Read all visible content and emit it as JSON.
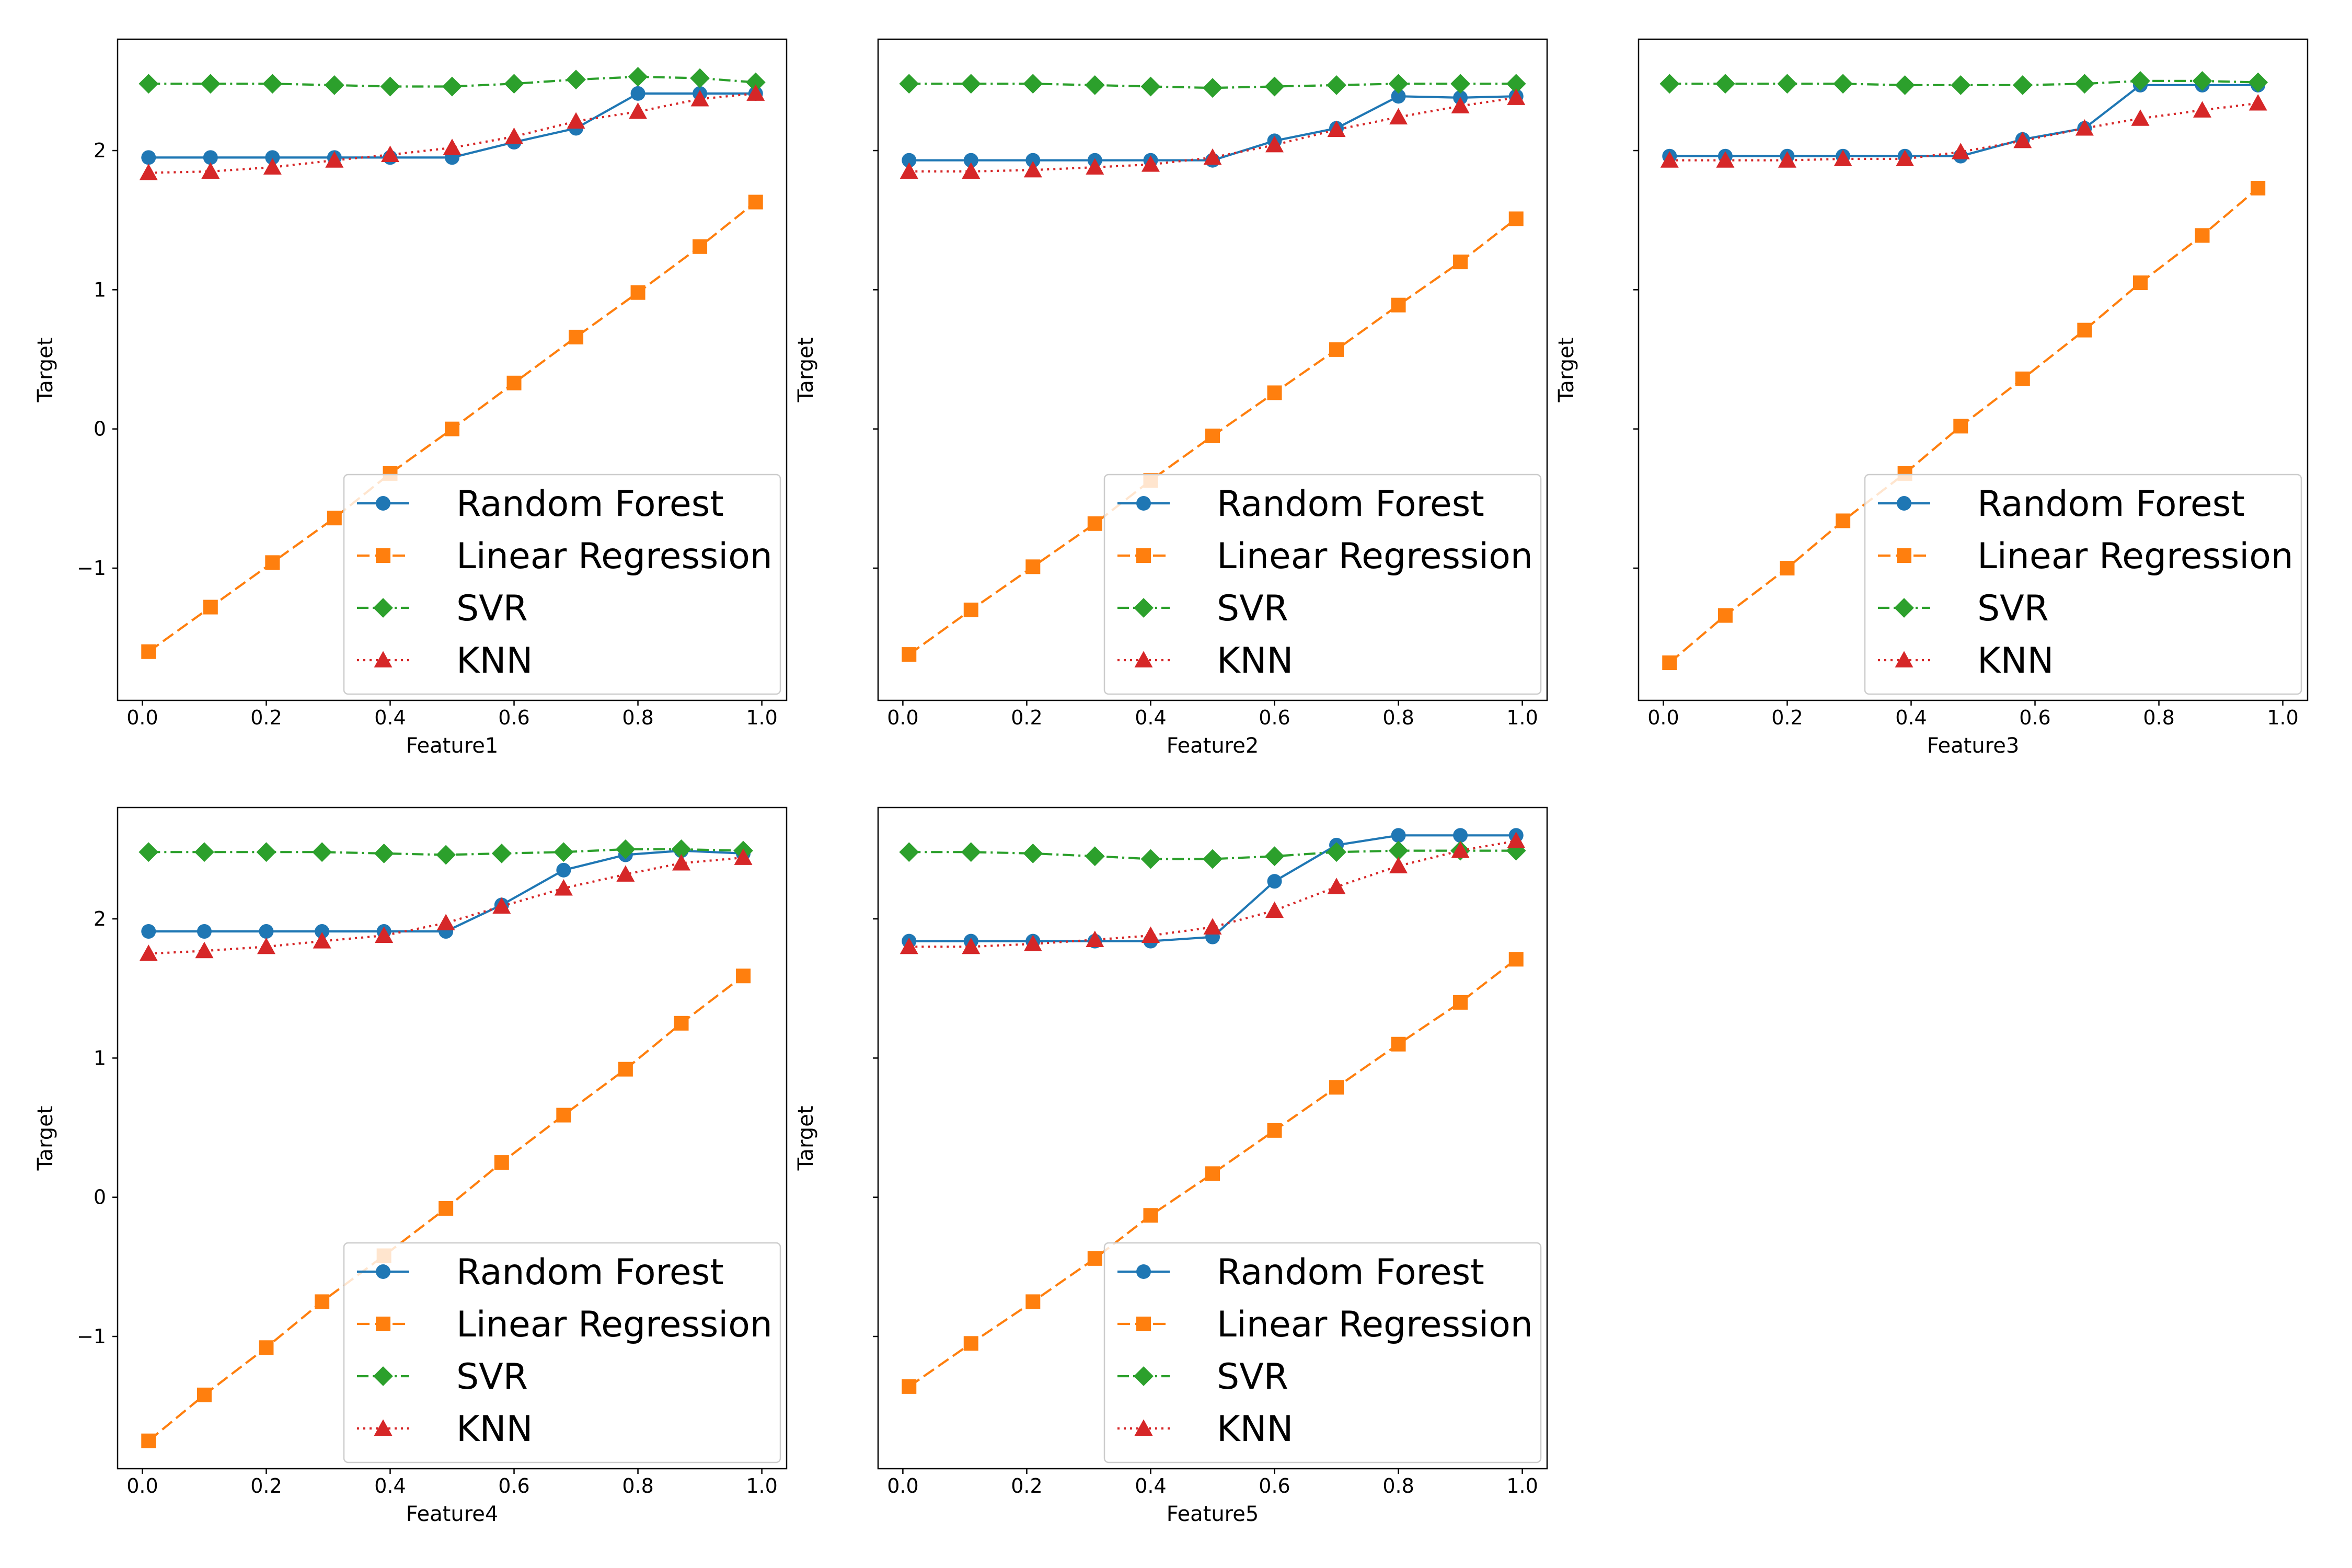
{
  "colors": {
    "Random Forest": "#1f77b4",
    "Linear Regression": "#ff7f0e",
    "SVR": "#2ca02c",
    "KNN": "#d62728"
  },
  "chart_data": [
    {
      "type": "line",
      "xlabel": "Feature1",
      "ylabel": "Target",
      "xlim": [
        -0.04,
        1.04
      ],
      "ylim": [
        -1.95,
        2.8
      ],
      "xticks": [
        "0.0",
        "0.2",
        "0.4",
        "0.6",
        "0.8",
        "1.0"
      ],
      "yticks": [
        "−1",
        "0",
        "1",
        "2"
      ],
      "legend": "lower-right",
      "x": [
        0.01,
        0.11,
        0.21,
        0.31,
        0.4,
        0.5,
        0.6,
        0.7,
        0.8,
        0.9,
        0.99
      ],
      "series": [
        {
          "name": "Random Forest",
          "marker": "circle",
          "linestyle": "solid",
          "values": [
            1.95,
            1.95,
            1.95,
            1.95,
            1.95,
            1.95,
            2.06,
            2.16,
            2.41,
            2.41,
            2.41
          ]
        },
        {
          "name": "Linear Regression",
          "marker": "square",
          "linestyle": "dashed",
          "values": [
            -1.6,
            -1.28,
            -0.96,
            -0.64,
            -0.32,
            0.0,
            0.33,
            0.66,
            0.98,
            1.31,
            1.63
          ]
        },
        {
          "name": "SVR",
          "marker": "diamond",
          "linestyle": "dashdot",
          "values": [
            2.48,
            2.48,
            2.48,
            2.47,
            2.46,
            2.46,
            2.48,
            2.51,
            2.53,
            2.52,
            2.49
          ]
        },
        {
          "name": "KNN",
          "marker": "triangle",
          "linestyle": "dotted",
          "values": [
            1.84,
            1.85,
            1.88,
            1.93,
            1.97,
            2.02,
            2.1,
            2.21,
            2.28,
            2.37,
            2.41
          ]
        }
      ]
    },
    {
      "type": "line",
      "xlabel": "Feature2",
      "ylabel": "Target",
      "xlim": [
        -0.04,
        1.04
      ],
      "ylim": [
        -1.95,
        2.8
      ],
      "xticks": [
        "0.0",
        "0.2",
        "0.4",
        "0.6",
        "0.8",
        "1.0"
      ],
      "yticks": [],
      "legend": "lower-right",
      "x": [
        0.01,
        0.11,
        0.21,
        0.31,
        0.4,
        0.5,
        0.6,
        0.7,
        0.8,
        0.9,
        0.99
      ],
      "series": [
        {
          "name": "Random Forest",
          "marker": "circle",
          "linestyle": "solid",
          "values": [
            1.93,
            1.93,
            1.93,
            1.93,
            1.93,
            1.93,
            2.07,
            2.16,
            2.39,
            2.38,
            2.39
          ]
        },
        {
          "name": "Linear Regression",
          "marker": "square",
          "linestyle": "dashed",
          "values": [
            -1.62,
            -1.3,
            -0.99,
            -0.68,
            -0.37,
            -0.05,
            0.26,
            0.57,
            0.89,
            1.2,
            1.51
          ]
        },
        {
          "name": "SVR",
          "marker": "diamond",
          "linestyle": "dashdot",
          "values": [
            2.48,
            2.48,
            2.48,
            2.47,
            2.46,
            2.45,
            2.46,
            2.47,
            2.48,
            2.48,
            2.48
          ]
        },
        {
          "name": "KNN",
          "marker": "triangle",
          "linestyle": "dotted",
          "values": [
            1.85,
            1.85,
            1.86,
            1.88,
            1.9,
            1.95,
            2.04,
            2.15,
            2.24,
            2.32,
            2.38
          ]
        }
      ]
    },
    {
      "type": "line",
      "xlabel": "Feature3",
      "ylabel": "Target",
      "xlim": [
        -0.04,
        1.04
      ],
      "ylim": [
        -1.95,
        2.8
      ],
      "xticks": [
        "0.0",
        "0.2",
        "0.4",
        "0.6",
        "0.8",
        "1.0"
      ],
      "yticks": [],
      "legend": "lower-right",
      "x": [
        0.01,
        0.1,
        0.2,
        0.29,
        0.39,
        0.48,
        0.58,
        0.68,
        0.77,
        0.87,
        0.96
      ],
      "series": [
        {
          "name": "Random Forest",
          "marker": "circle",
          "linestyle": "solid",
          "values": [
            1.96,
            1.96,
            1.96,
            1.96,
            1.96,
            1.96,
            2.08,
            2.16,
            2.47,
            2.47,
            2.47
          ]
        },
        {
          "name": "Linear Regression",
          "marker": "square",
          "linestyle": "dashed",
          "values": [
            -1.68,
            -1.34,
            -1.0,
            -0.66,
            -0.32,
            0.02,
            0.36,
            0.71,
            1.05,
            1.39,
            1.73
          ]
        },
        {
          "name": "SVR",
          "marker": "diamond",
          "linestyle": "dashdot",
          "values": [
            2.48,
            2.48,
            2.48,
            2.48,
            2.47,
            2.47,
            2.47,
            2.48,
            2.5,
            2.5,
            2.49
          ]
        },
        {
          "name": "KNN",
          "marker": "triangle",
          "linestyle": "dotted",
          "values": [
            1.93,
            1.93,
            1.93,
            1.94,
            1.94,
            1.99,
            2.07,
            2.16,
            2.23,
            2.29,
            2.34
          ]
        }
      ]
    },
    {
      "type": "line",
      "xlabel": "Feature4",
      "ylabel": "Target",
      "xlim": [
        -0.04,
        1.04
      ],
      "ylim": [
        -1.95,
        2.8
      ],
      "xticks": [
        "0.0",
        "0.2",
        "0.4",
        "0.6",
        "0.8",
        "1.0"
      ],
      "yticks": [
        "−1",
        "0",
        "1",
        "2"
      ],
      "legend": "lower-right",
      "x": [
        0.01,
        0.1,
        0.2,
        0.29,
        0.39,
        0.49,
        0.58,
        0.68,
        0.78,
        0.87,
        0.97
      ],
      "series": [
        {
          "name": "Random Forest",
          "marker": "circle",
          "linestyle": "solid",
          "values": [
            1.91,
            1.91,
            1.91,
            1.91,
            1.91,
            1.91,
            2.1,
            2.35,
            2.46,
            2.49,
            2.47
          ]
        },
        {
          "name": "Linear Regression",
          "marker": "square",
          "linestyle": "dashed",
          "values": [
            -1.75,
            -1.42,
            -1.08,
            -0.75,
            -0.42,
            -0.08,
            0.25,
            0.59,
            0.92,
            1.25,
            1.59
          ]
        },
        {
          "name": "SVR",
          "marker": "diamond",
          "linestyle": "dashdot",
          "values": [
            2.48,
            2.48,
            2.48,
            2.48,
            2.47,
            2.46,
            2.47,
            2.48,
            2.5,
            2.5,
            2.49
          ]
        },
        {
          "name": "KNN",
          "marker": "triangle",
          "linestyle": "dotted",
          "values": [
            1.75,
            1.77,
            1.8,
            1.84,
            1.88,
            1.97,
            2.09,
            2.22,
            2.32,
            2.4,
            2.44
          ]
        }
      ]
    },
    {
      "type": "line",
      "xlabel": "Feature5",
      "ylabel": "Target",
      "xlim": [
        -0.04,
        1.04
      ],
      "ylim": [
        -1.95,
        2.8
      ],
      "xticks": [
        "0.0",
        "0.2",
        "0.4",
        "0.6",
        "0.8",
        "1.0"
      ],
      "yticks": [],
      "legend": "lower-right",
      "x": [
        0.01,
        0.11,
        0.21,
        0.31,
        0.4,
        0.5,
        0.6,
        0.7,
        0.8,
        0.9,
        0.99
      ],
      "series": [
        {
          "name": "Random Forest",
          "marker": "circle",
          "linestyle": "solid",
          "values": [
            1.84,
            1.84,
            1.84,
            1.84,
            1.84,
            1.87,
            2.27,
            2.53,
            2.6,
            2.6,
            2.6
          ]
        },
        {
          "name": "Linear Regression",
          "marker": "square",
          "linestyle": "dashed",
          "values": [
            -1.36,
            -1.05,
            -0.75,
            -0.44,
            -0.13,
            0.17,
            0.48,
            0.79,
            1.1,
            1.4,
            1.71
          ]
        },
        {
          "name": "SVR",
          "marker": "diamond",
          "linestyle": "dashdot",
          "values": [
            2.48,
            2.48,
            2.47,
            2.45,
            2.43,
            2.43,
            2.45,
            2.48,
            2.49,
            2.49,
            2.49
          ]
        },
        {
          "name": "KNN",
          "marker": "triangle",
          "linestyle": "dotted",
          "values": [
            1.8,
            1.8,
            1.82,
            1.85,
            1.88,
            1.94,
            2.06,
            2.23,
            2.38,
            2.49,
            2.56
          ]
        }
      ]
    }
  ]
}
